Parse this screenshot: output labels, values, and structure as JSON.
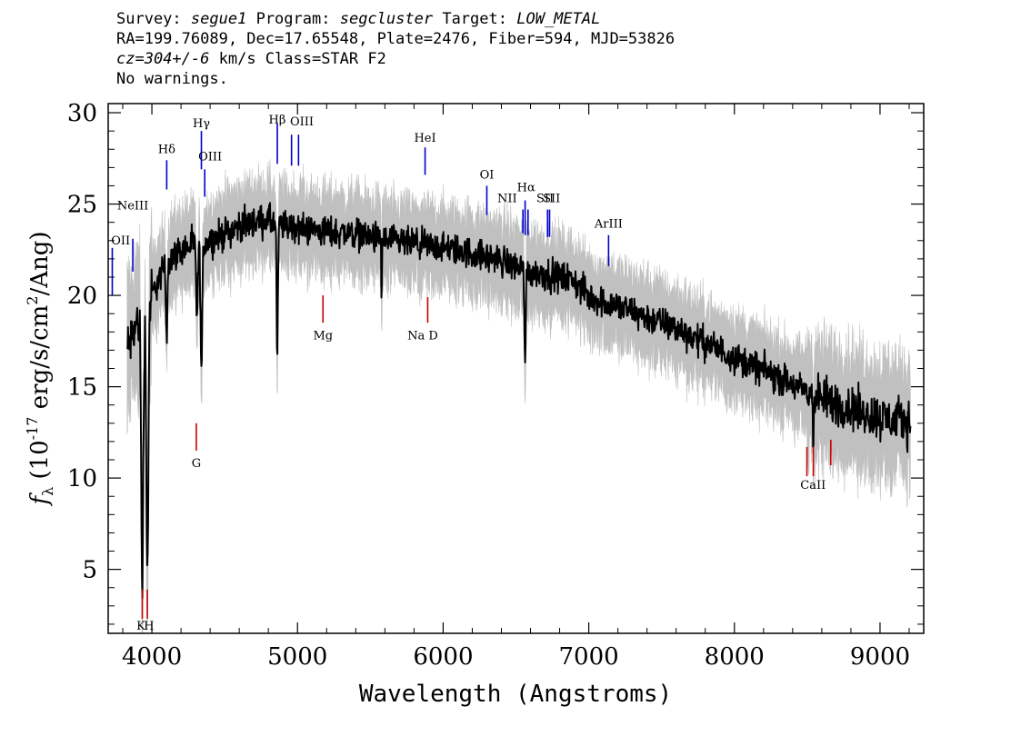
{
  "header": {
    "survey_label": "Survey:",
    "survey": "segue1",
    "program_label": "Program:",
    "program": "segcluster",
    "target_label": "Target:",
    "target": "LOW_METAL",
    "line2": "RA=199.76089, Dec=17.65548, Plate=2476, Fiber=594, MJD=53826",
    "cz_label": "cz=",
    "cz_value": "304+/-6",
    "cz_rest": " km/s Class=STAR F2",
    "line4": "No warnings."
  },
  "chart_data": {
    "type": "line",
    "xlabel": "Wavelength (Angstroms)",
    "ylabel": "f_λ (10^-17 erg/s/cm^2/Ang)",
    "xlim": [
      3700,
      9300
    ],
    "ylim": [
      1.5,
      30.5
    ],
    "xticks": [
      4000,
      5000,
      6000,
      7000,
      8000,
      9000
    ],
    "yticks": [
      5,
      10,
      15,
      20,
      25,
      30
    ],
    "colors": {
      "flux": "#000000",
      "error_band": "#c0c0c0",
      "emission": "#0000cc",
      "absorption": "#cc0000"
    },
    "continuum": [
      [
        3830,
        17.0
      ],
      [
        3900,
        18.5
      ],
      [
        4000,
        20.0
      ],
      [
        4100,
        21.8
      ],
      [
        4200,
        22.5
      ],
      [
        4300,
        22.8
      ],
      [
        4400,
        23.0
      ],
      [
        4500,
        23.4
      ],
      [
        4600,
        23.8
      ],
      [
        4700,
        24.0
      ],
      [
        4800,
        24.1
      ],
      [
        4900,
        23.8
      ],
      [
        5000,
        23.7
      ],
      [
        5200,
        23.5
      ],
      [
        5400,
        23.4
      ],
      [
        5600,
        23.0
      ],
      [
        5800,
        22.8
      ],
      [
        6000,
        22.6
      ],
      [
        6200,
        22.3
      ],
      [
        6400,
        21.9
      ],
      [
        6600,
        21.3
      ],
      [
        6800,
        21.0
      ],
      [
        6900,
        20.8
      ],
      [
        7000,
        19.9
      ],
      [
        7200,
        19.4
      ],
      [
        7400,
        18.8
      ],
      [
        7600,
        18.2
      ],
      [
        7800,
        17.4
      ],
      [
        8000,
        16.6
      ],
      [
        8200,
        15.9
      ],
      [
        8400,
        15.1
      ],
      [
        8600,
        14.3
      ],
      [
        8800,
        13.8
      ],
      [
        9000,
        13.3
      ],
      [
        9200,
        13.1
      ]
    ],
    "absorption_features": [
      {
        "wave": 3934,
        "depth": 15.0,
        "width": 14
      },
      {
        "wave": 3969,
        "depth": 14.5,
        "width": 14
      },
      {
        "wave": 4101,
        "depth": 4.0,
        "width": 10
      },
      {
        "wave": 4310,
        "depth": 4.0,
        "width": 12
      },
      {
        "wave": 4340,
        "depth": 7.0,
        "width": 12
      },
      {
        "wave": 4861,
        "depth": 7.5,
        "width": 9
      },
      {
        "wave": 5577,
        "depth": 3.5,
        "width": 4
      },
      {
        "wave": 6563,
        "depth": 5.0,
        "width": 9
      },
      {
        "wave": 8542,
        "depth": 2.0,
        "width": 8
      }
    ],
    "emission_lines": [
      {
        "label": "OII",
        "wave": 3728,
        "label_wave": 3720,
        "y_top": 22.6,
        "y_bot": 20.0,
        "label_y": 22.8
      },
      {
        "label": "NeIII",
        "wave": 3869,
        "label_wave": 3869,
        "y_top": 23.1,
        "y_bot": 21.3,
        "label_y": 24.7
      },
      {
        "label": "Hδ",
        "wave": 4102,
        "label_wave": 4102,
        "y_top": 27.4,
        "y_bot": 25.8,
        "label_y": 27.8
      },
      {
        "label": "Hγ",
        "wave": 4340,
        "label_wave": 4340,
        "y_top": 29.0,
        "y_bot": 26.9,
        "label_y": 29.2
      },
      {
        "label": "OIII",
        "wave": 4363,
        "label_wave": 4400,
        "y_top": 26.9,
        "y_bot": 25.4,
        "label_y": 27.4
      },
      {
        "label": "Hβ",
        "wave": 4861,
        "label_wave": 4861,
        "y_top": 29.4,
        "y_bot": 27.2,
        "label_y": 29.4
      },
      {
        "label": "OIII",
        "wave": 4959,
        "label_wave": 5030,
        "y_top": 28.8,
        "y_bot": 27.1,
        "label_y": 29.3
      },
      {
        "label": "OIII",
        "wave": 5007,
        "label_wave": "",
        "y_top": 28.8,
        "y_bot": 27.1,
        "label_y": 29.3
      },
      {
        "label": "HeI",
        "wave": 5876,
        "label_wave": 5876,
        "y_top": 28.1,
        "y_bot": 26.6,
        "label_y": 28.4
      },
      {
        "label": "OI",
        "wave": 6300,
        "label_wave": 6300,
        "y_top": 26.0,
        "y_bot": 24.4,
        "label_y": 26.4
      },
      {
        "label": "NII",
        "wave": 6548,
        "label_wave": 6440,
        "y_top": 24.7,
        "y_bot": 23.4,
        "label_y": 25.1
      },
      {
        "label": "Hα",
        "wave": 6563,
        "label_wave": 6570,
        "y_top": 25.2,
        "y_bot": 23.3,
        "label_y": 25.7
      },
      {
        "label": "NII",
        "wave": 6583,
        "label_wave": "",
        "y_top": 24.7,
        "y_bot": 23.3,
        "label_y": 25.1
      },
      {
        "label": "SII",
        "wave": 6717,
        "label_wave": 6700,
        "y_top": 24.7,
        "y_bot": 23.2,
        "label_y": 25.1
      },
      {
        "label": "SII",
        "wave": 6731,
        "label_wave": 6745,
        "y_top": 24.7,
        "y_bot": 23.2,
        "label_y": 25.1
      },
      {
        "label": "ArIII",
        "wave": 7136,
        "label_wave": 7136,
        "y_top": 23.3,
        "y_bot": 21.6,
        "label_y": 23.7
      }
    ],
    "absorption_lines": [
      {
        "label": "K",
        "wave": 3934,
        "label_wave": 3925,
        "y_top": 3.9,
        "y_bot": 2.3,
        "label_y": 1.7
      },
      {
        "label": "H",
        "wave": 3969,
        "label_wave": 3980,
        "y_top": 3.9,
        "y_bot": 2.3,
        "label_y": 1.7
      },
      {
        "label": "G",
        "wave": 4305,
        "label_wave": 4305,
        "y_top": 13.0,
        "y_bot": 11.5,
        "label_y": 10.6
      },
      {
        "label": "Mg",
        "wave": 5175,
        "label_wave": 5175,
        "y_top": 20.0,
        "y_bot": 18.5,
        "label_y": 17.6
      },
      {
        "label": "Na D",
        "wave": 5894,
        "label_wave": 5860,
        "y_top": 19.9,
        "y_bot": 18.5,
        "label_y": 17.6
      },
      {
        "label": "CaII",
        "wave": 8498,
        "label_wave": 8540,
        "y_top": 11.7,
        "y_bot": 10.1,
        "label_y": 9.4
      },
      {
        "label": "CaII",
        "wave": 8542,
        "label_wave": "",
        "y_top": 11.7,
        "y_bot": 10.1,
        "label_y": 9.4
      },
      {
        "label": "CaII",
        "wave": 8662,
        "label_wave": "",
        "y_top": 12.1,
        "y_bot": 10.7,
        "label_y": 9.4
      }
    ]
  }
}
